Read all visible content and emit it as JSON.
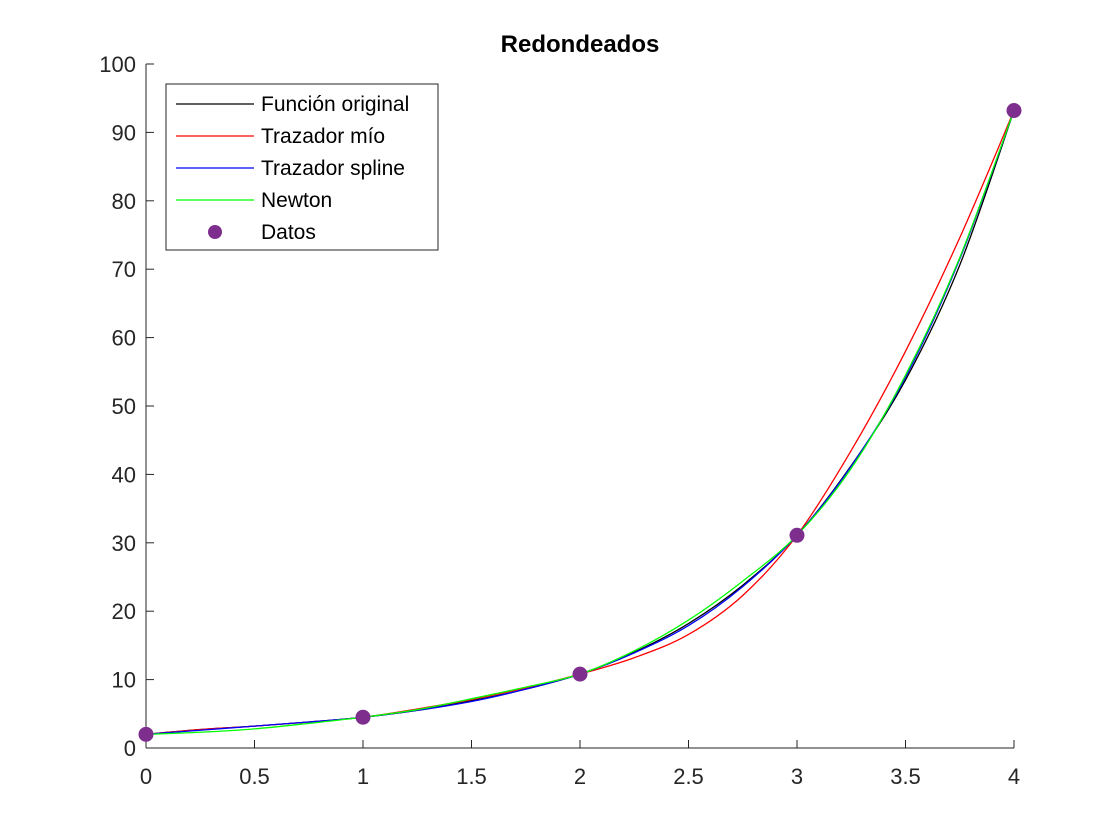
{
  "chart_data": {
    "type": "line",
    "title": "Redondeados",
    "xlabel": "",
    "ylabel": "",
    "xlim": [
      0,
      4
    ],
    "ylim": [
      0,
      100
    ],
    "xticks": [
      0,
      0.5,
      1,
      1.5,
      2,
      2.5,
      3,
      3.5,
      4
    ],
    "xtick_labels": [
      "0",
      "0.5",
      "1",
      "1.5",
      "2",
      "2.5",
      "3",
      "3.5",
      "4"
    ],
    "yticks": [
      0,
      10,
      20,
      30,
      40,
      50,
      60,
      70,
      80,
      90,
      100
    ],
    "ytick_labels": [
      "0",
      "10",
      "20",
      "30",
      "40",
      "50",
      "60",
      "70",
      "80",
      "90",
      "100"
    ],
    "grid": false,
    "legend_position": "top-left",
    "series": [
      {
        "name": "Función original",
        "color": "#000000",
        "style": "line",
        "x": [
          0,
          0.25,
          0.5,
          0.75,
          1,
          1.25,
          1.5,
          1.75,
          2,
          2.25,
          2.5,
          2.75,
          3,
          3.25,
          3.5,
          3.75,
          4
        ],
        "y": [
          2.0,
          2.7,
          3.2,
          3.8,
          4.5,
          5.5,
          6.9,
          8.6,
          10.8,
          14.0,
          18.2,
          23.8,
          31.1,
          41.3,
          53.8,
          70.6,
          93.2
        ]
      },
      {
        "name": "Trazador mío",
        "color": "#ff0000",
        "style": "line",
        "x": [
          0,
          0.25,
          0.5,
          0.75,
          1,
          1.25,
          1.5,
          1.75,
          2,
          2.25,
          2.5,
          2.75,
          3,
          3.25,
          3.5,
          3.75,
          4
        ],
        "y": [
          2.0,
          2.7,
          3.2,
          3.8,
          4.5,
          5.7,
          7.1,
          8.8,
          10.8,
          13.2,
          16.6,
          22.3,
          31.1,
          43.5,
          58.0,
          74.6,
          93.2
        ]
      },
      {
        "name": "Trazador spline",
        "color": "#0000ff",
        "style": "line",
        "x": [
          0,
          0.25,
          0.5,
          0.75,
          1,
          1.25,
          1.5,
          1.75,
          2,
          2.25,
          2.5,
          2.75,
          3,
          3.25,
          3.5,
          3.75,
          4
        ],
        "y": [
          2.0,
          2.6,
          3.2,
          3.8,
          4.5,
          5.5,
          6.8,
          8.6,
          10.8,
          13.9,
          17.9,
          23.6,
          31.1,
          41.2,
          54.2,
          71.5,
          93.2
        ]
      },
      {
        "name": "Newton",
        "color": "#00ff00",
        "style": "line",
        "x": [
          0,
          0.25,
          0.5,
          0.75,
          1,
          1.25,
          1.5,
          1.75,
          2,
          2.25,
          2.5,
          2.75,
          3,
          3.25,
          3.5,
          3.75,
          4
        ],
        "y": [
          2.0,
          2.3,
          2.8,
          3.6,
          4.5,
          5.6,
          7.2,
          8.9,
          10.8,
          14.2,
          18.7,
          24.4,
          31.1,
          40.9,
          54.5,
          71.7,
          93.2
        ]
      },
      {
        "name": "Datos",
        "color": "#7e2f8e",
        "style": "marker",
        "x": [
          0,
          1,
          2,
          3,
          4
        ],
        "y": [
          2.0,
          4.5,
          10.8,
          31.1,
          93.2
        ]
      }
    ]
  }
}
